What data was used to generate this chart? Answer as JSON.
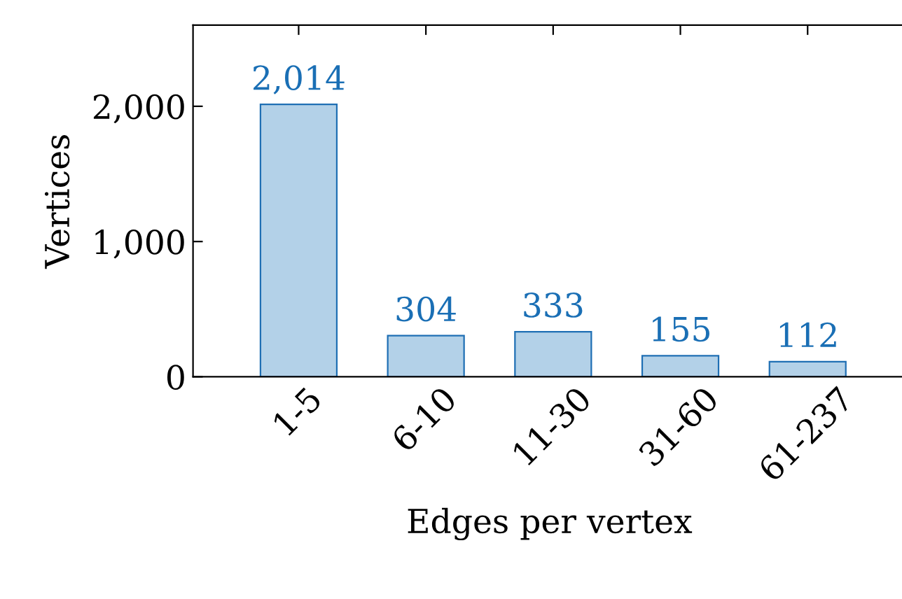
{
  "chart_data": {
    "type": "bar",
    "xlabel": "Edges per vertex",
    "ylabel": "Vertices",
    "categories": [
      "1-5",
      "6-10",
      "11-30",
      "31-60",
      "61-237"
    ],
    "series": [
      {
        "color": "#b3d1e8",
        "values": [
          2014,
          304,
          333,
          155,
          112
        ],
        "value_labels": [
          "2,014",
          "304",
          "333",
          "155",
          "112"
        ]
      }
    ],
    "ylim": [
      0,
      2600
    ],
    "yticks": [
      0,
      {
        "value": 1000,
        "label": "1,000"
      },
      {
        "value": 2000,
        "label": "2,000"
      }
    ],
    "grid": false,
    "legend": false
  }
}
